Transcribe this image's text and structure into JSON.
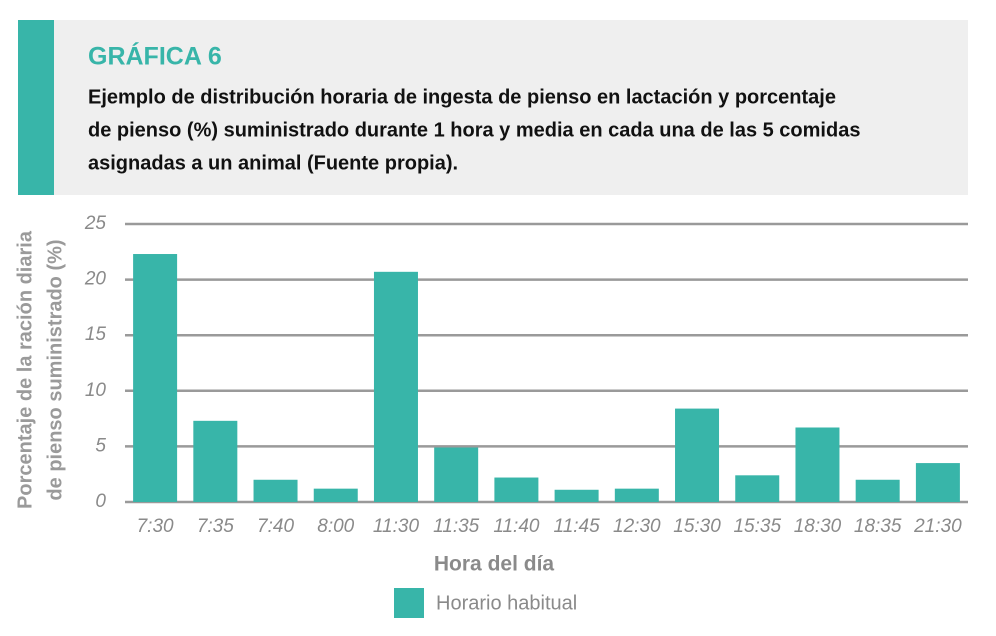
{
  "chart_data": {
    "type": "bar",
    "title": "GRÁFICA 6",
    "subtitle_lines": [
      "Ejemplo de distribución horaria de ingesta de pienso en lactación y porcentaje",
      "de pienso (%) suministrado durante 1 hora y media en cada una de las 5 comidas",
      "asignadas a un animal (Fuente propia)."
    ],
    "y_label_lines": [
      "Porcentaje de la ración diaria",
      "de pienso suministrado (%)"
    ],
    "x_label": "Hora del día",
    "categories": [
      "7:30",
      "7:35",
      "7:40",
      "8:00",
      "11:30",
      "11:35",
      "11:40",
      "11:45",
      "12:30",
      "15:30",
      "15:35",
      "18:30",
      "18:35",
      "21:30"
    ],
    "series": [
      {
        "name": "Horario habitual",
        "color": "#38b5a9",
        "values": [
          22.3,
          7.3,
          2.0,
          1.2,
          20.7,
          4.9,
          2.2,
          1.1,
          1.2,
          8.4,
          2.4,
          6.7,
          2.0,
          3.5
        ]
      }
    ],
    "ylim": [
      0,
      25
    ],
    "yticks": [
      0,
      5,
      10,
      15,
      20,
      25
    ],
    "grid": true
  }
}
